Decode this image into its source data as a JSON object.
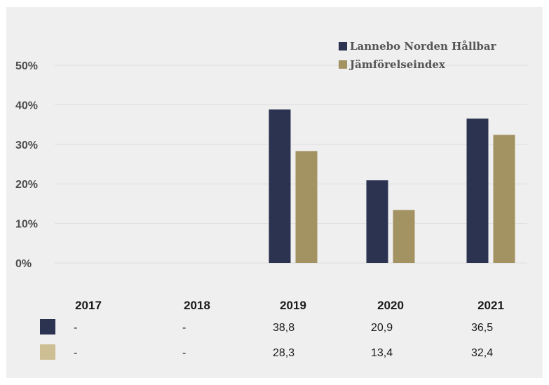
{
  "chart_data": {
    "type": "bar",
    "categories": [
      "2017",
      "2018",
      "2019",
      "2020",
      "2021"
    ],
    "series": [
      {
        "name": "Lannebo Norden Hållbar",
        "color": "#2b3350",
        "swatch": "#2b3350",
        "values": [
          null,
          null,
          38.8,
          20.9,
          36.5
        ],
        "table": [
          "-",
          "-",
          "38,8",
          "20,9",
          "36,5"
        ]
      },
      {
        "name": "Jämförelseindex",
        "color": "#a39262",
        "swatch": "#cdbf93",
        "values": [
          null,
          null,
          28.3,
          13.4,
          32.4
        ],
        "table": [
          "-",
          "-",
          "28,3",
          "13,4",
          "32,4"
        ]
      }
    ],
    "ylim": [
      0,
      50
    ],
    "yticks": [
      "0%",
      "10%",
      "20%",
      "30%",
      "40%",
      "50%"
    ],
    "grid": true,
    "legend": "top-right",
    "colors": {
      "background": "#efefef",
      "grid": "#dddddd"
    }
  }
}
